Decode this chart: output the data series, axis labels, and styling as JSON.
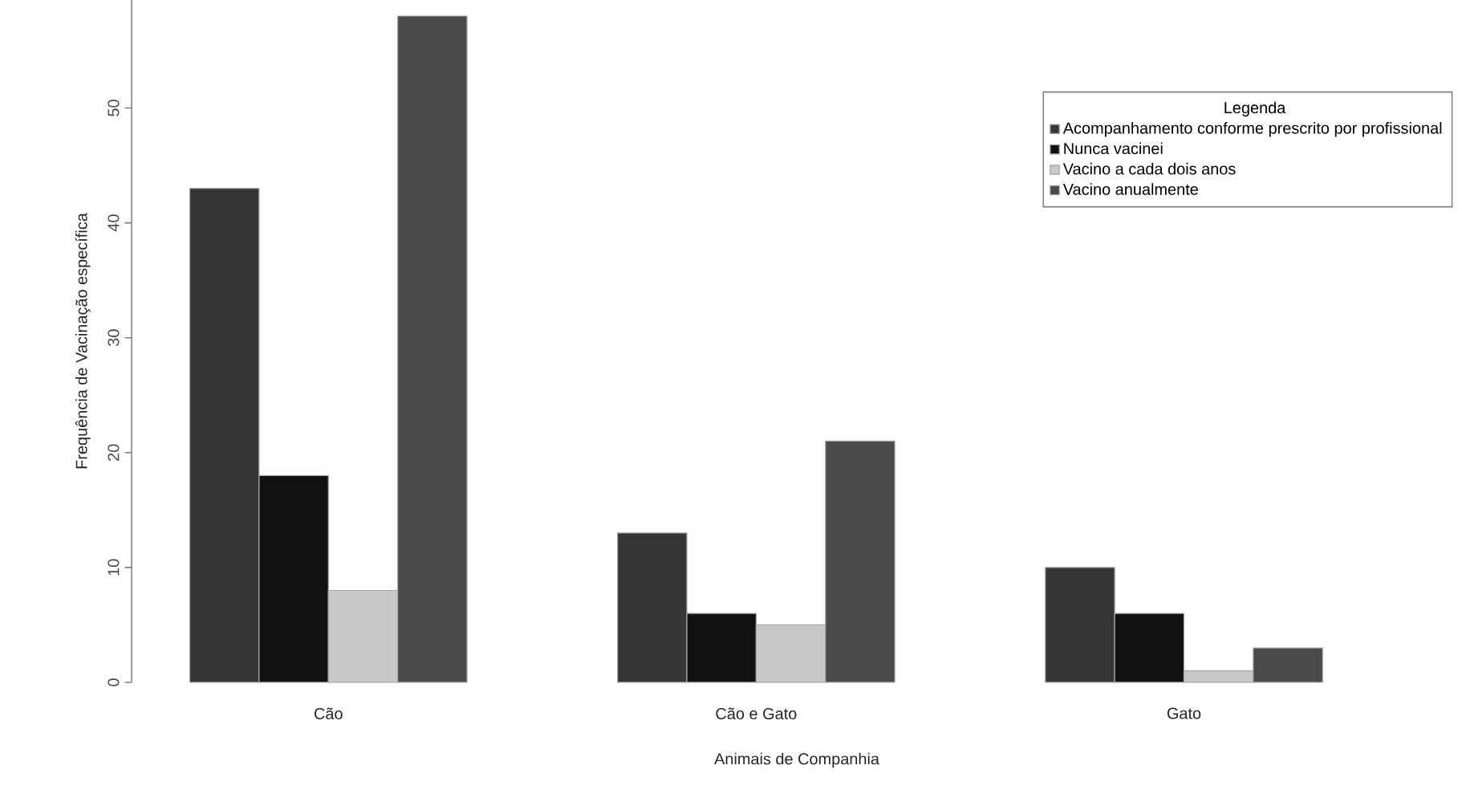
{
  "chart_data": {
    "type": "bar",
    "xlabel": "Animais de Companhia",
    "ylabel": "Frequência de Vacinação específica",
    "legend_title": "Legenda",
    "legend": "top right",
    "categories": [
      "Cão",
      "Cão e Gato",
      "Gato"
    ],
    "series": [
      {
        "name": "Acompanhamento conforme prescrito por profissional",
        "color": "#363636",
        "values": [
          43,
          13,
          10
        ]
      },
      {
        "name": "Nunca vacinei",
        "color": "#111111",
        "values": [
          18,
          6,
          6
        ]
      },
      {
        "name": "Vacino a cada dois anos",
        "color": "#c8c8c8",
        "values": [
          8,
          5,
          1
        ]
      },
      {
        "name": "Vacino anualmente",
        "color": "#4a4a4a",
        "values": [
          58,
          21,
          3
        ]
      }
    ],
    "ylim": [
      0,
      59.4
    ],
    "yticks": [
      0,
      10,
      20,
      30,
      40,
      50
    ]
  }
}
